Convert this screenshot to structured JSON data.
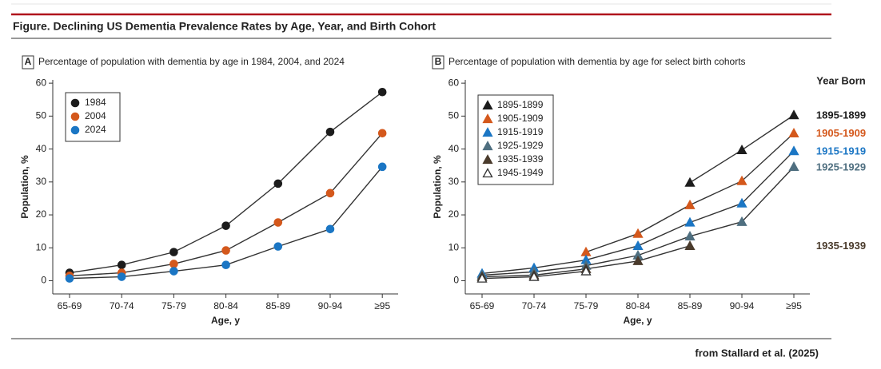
{
  "title": "Figure. Declining US Dementia Prevalence Rates by Age, Year, and Birth Cohort",
  "source": "from Stallard et al. (2025)",
  "chart_data": [
    {
      "type": "line",
      "panel": "A",
      "title": "Percentage of population with dementia by age in 1984, 2004, and 2024",
      "xlabel": "Age, y",
      "ylabel": "Population, %",
      "categories": [
        "65-69",
        "70-74",
        "75-79",
        "80-84",
        "85-89",
        "90-94",
        "≥95"
      ],
      "marker": "circle",
      "line_color": "#333333",
      "legend": "upper left",
      "ylim": [
        -4,
        61
      ],
      "yticks": [
        0,
        10,
        20,
        30,
        40,
        50,
        60
      ],
      "series": [
        {
          "name": "1984",
          "color": "#1c1c1c",
          "values": [
            2.4,
            4.8,
            8.7,
            16.7,
            29.5,
            45.2,
            57.3
          ]
        },
        {
          "name": "2004",
          "color": "#d4581c",
          "values": [
            1.5,
            2.4,
            5.1,
            9.2,
            17.7,
            26.6,
            44.8
          ]
        },
        {
          "name": "2024",
          "color": "#1b76c4",
          "values": [
            0.7,
            1.2,
            2.9,
            4.8,
            10.4,
            15.7,
            34.6
          ]
        }
      ]
    },
    {
      "type": "line",
      "panel": "B",
      "title": "Percentage of population with dementia by age for select birth cohorts",
      "xlabel": "Age, y",
      "ylabel": "Population, %",
      "categories": [
        "65-69",
        "70-74",
        "75-79",
        "80-84",
        "85-89",
        "90-94",
        "≥95"
      ],
      "marker": "triangle",
      "line_color": "#333333",
      "legend": "upper left",
      "end_labels_title": "Year Born",
      "ylim": [
        -4,
        61
      ],
      "yticks": [
        0,
        10,
        20,
        30,
        40,
        50,
        60
      ],
      "series": [
        {
          "name": "1895-1899",
          "color": "#1c1c1c",
          "end_label": true,
          "values": [
            null,
            null,
            null,
            null,
            29.8,
            39.7,
            50.3
          ]
        },
        {
          "name": "1905-1909",
          "color": "#d4581c",
          "end_label": true,
          "values": [
            null,
            null,
            8.7,
            14.3,
            23.0,
            30.3,
            44.8
          ]
        },
        {
          "name": "1915-1919",
          "color": "#1b76c4",
          "end_label": true,
          "values": [
            2.2,
            3.9,
            6.3,
            10.6,
            17.7,
            23.5,
            39.4
          ]
        },
        {
          "name": "1925-1929",
          "color": "#4f6f80",
          "end_label": true,
          "values": [
            1.7,
            2.7,
            4.6,
            7.7,
            13.5,
            17.9,
            34.6
          ]
        },
        {
          "name": "1935-1939",
          "color": "#4a3b2c",
          "end_label": true,
          "values": [
            1.2,
            1.7,
            3.6,
            6.0,
            10.6,
            null,
            null
          ]
        },
        {
          "name": "1945-1949",
          "color": "#333333",
          "marker_fill": "#ffffff",
          "end_label": false,
          "values": [
            0.7,
            1.2,
            2.9,
            null,
            null,
            null,
            null
          ]
        }
      ]
    }
  ]
}
